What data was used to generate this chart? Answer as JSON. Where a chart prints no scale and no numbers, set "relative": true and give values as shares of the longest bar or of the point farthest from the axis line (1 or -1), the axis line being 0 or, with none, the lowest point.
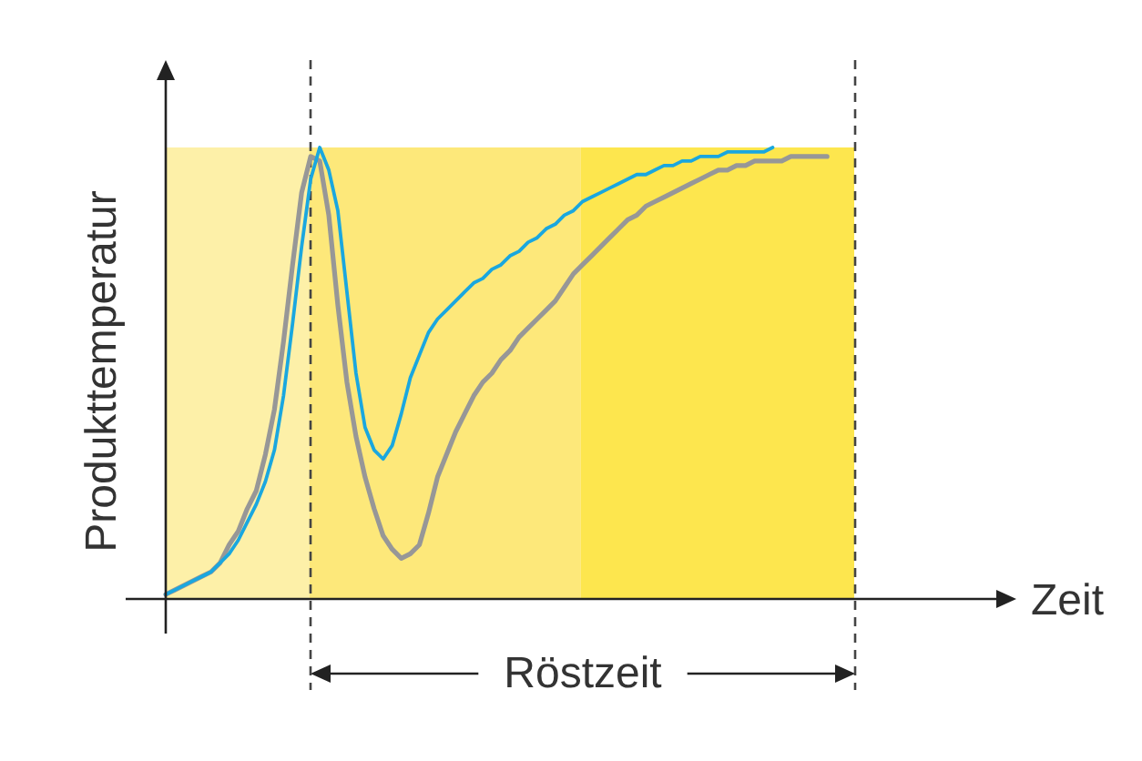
{
  "chart_data": {
    "type": "line",
    "xlabel": "Zeit",
    "ylabel": "Produkttemperatur",
    "relative": true,
    "legend": false,
    "marker": "none",
    "line_style": "solid",
    "annotations": [
      "Röstzeit"
    ],
    "categories": [
      null,
      null,
      null,
      null,
      null,
      null,
      null,
      null,
      null,
      null,
      null,
      null,
      null,
      null,
      null,
      null,
      null,
      null,
      null,
      null,
      null,
      null,
      null,
      null,
      null,
      null,
      null,
      null,
      null,
      null,
      null,
      null,
      null,
      null,
      null,
      null,
      null,
      null,
      null,
      null,
      null,
      null,
      null,
      null,
      null,
      null,
      null,
      null,
      null,
      null,
      null,
      null,
      null,
      null,
      null,
      null,
      null,
      null,
      null,
      null,
      null,
      null,
      null,
      null,
      null,
      null,
      null,
      null,
      null,
      null,
      null,
      null,
      null,
      null,
      null,
      null,
      null
    ],
    "series": [
      {
        "color": "#1aa7df",
        "values": [
          0.01,
          0.02,
          0.03,
          0.04,
          0.05,
          0.06,
          0.08,
          0.1,
          0.13,
          0.17,
          0.21,
          0.26,
          0.33,
          0.45,
          0.61,
          0.78,
          0.93,
          1,
          0.95,
          0.86,
          0.68,
          0.5,
          0.38,
          0.33,
          0.31,
          0.34,
          0.41,
          0.49,
          0.54,
          0.59,
          0.62,
          0.64,
          0.66,
          0.68,
          0.7,
          0.71,
          0.73,
          0.74,
          0.76,
          0.77,
          0.79,
          0.8,
          0.82,
          0.83,
          0.85,
          0.86,
          0.88,
          0.89,
          0.9,
          0.91,
          0.92,
          0.93,
          0.94,
          0.94,
          0.95,
          0.96,
          0.96,
          0.97,
          0.97,
          0.98,
          0.98,
          0.98,
          0.99,
          0.99,
          0.99,
          0.99,
          0.99,
          1,
          null,
          null,
          null,
          null,
          null,
          null,
          null,
          null,
          null
        ]
      },
      {
        "color": "#979797",
        "values": [
          0.01,
          0.02,
          0.03,
          0.04,
          0.05,
          0.06,
          0.08,
          0.12,
          0.15,
          0.2,
          0.24,
          0.32,
          0.42,
          0.57,
          0.74,
          0.9,
          0.98,
          0.97,
          0.85,
          0.65,
          0.48,
          0.36,
          0.27,
          0.2,
          0.14,
          0.11,
          0.09,
          0.1,
          0.12,
          0.19,
          0.27,
          0.32,
          0.37,
          0.41,
          0.45,
          0.48,
          0.5,
          0.53,
          0.55,
          0.58,
          0.6,
          0.62,
          0.64,
          0.66,
          0.69,
          0.72,
          0.74,
          0.76,
          0.78,
          0.8,
          0.82,
          0.84,
          0.85,
          0.87,
          0.88,
          0.89,
          0.9,
          0.91,
          0.92,
          0.93,
          0.94,
          0.95,
          0.95,
          0.96,
          0.96,
          0.97,
          0.97,
          0.97,
          0.97,
          0.98,
          0.98,
          0.98,
          0.98,
          0.98,
          null,
          null,
          null
        ]
      }
    ]
  }
}
